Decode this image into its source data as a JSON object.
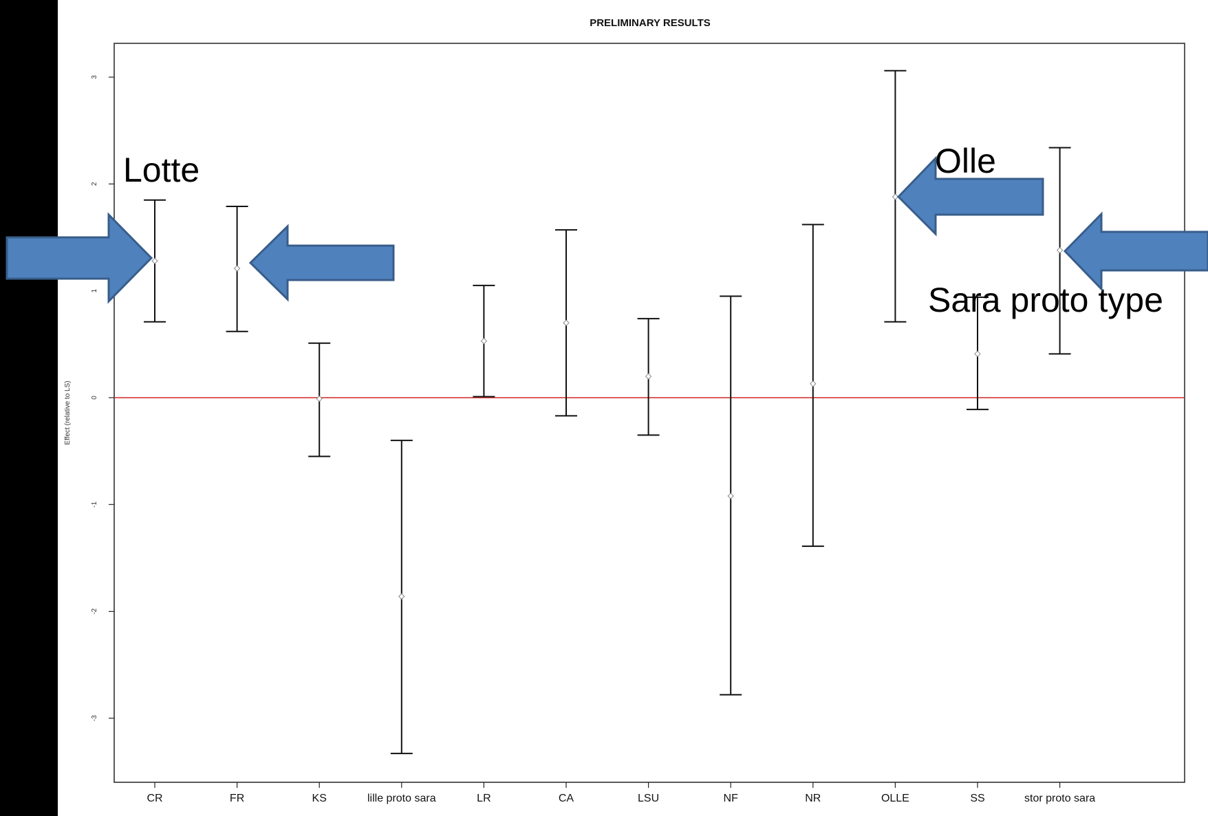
{
  "chart_data": {
    "type": "errorbar",
    "title": "PRELIMINARY RESULTS",
    "xlabel": "",
    "ylabel": "Effect (relative to LS)",
    "ylim": [
      -3.6,
      3.3
    ],
    "yticks": [
      -3,
      -2,
      -1,
      0,
      1,
      2,
      3
    ],
    "ytick_labels": [
      "-3",
      "-2",
      "-1",
      "0",
      "1",
      "2",
      "3"
    ],
    "grid": false,
    "reference_line": {
      "y": 0,
      "color": "#d62728"
    },
    "categories": [
      "CR",
      "FR",
      "KS",
      "lille proto sara",
      "LR",
      "CA",
      "LSU",
      "NF",
      "NR",
      "OLLE",
      "SS",
      "stor proto sara"
    ],
    "estimates": [
      1.28,
      1.21,
      -0.01,
      -1.86,
      0.53,
      0.7,
      0.2,
      -0.92,
      0.13,
      1.88,
      0.41,
      1.38
    ],
    "lower": [
      0.71,
      0.62,
      -0.55,
      -3.33,
      0.01,
      -0.17,
      -0.35,
      -2.78,
      -1.39,
      0.71,
      -0.11,
      0.41
    ],
    "upper": [
      1.85,
      1.79,
      0.51,
      -0.4,
      1.05,
      1.57,
      0.74,
      0.95,
      1.62,
      3.06,
      0.94,
      2.34
    ],
    "annotations": [
      "Lotte",
      "Olle",
      "Sara proto type"
    ]
  },
  "colors": {
    "background": "#000000",
    "plot_background": "#ffffff",
    "arrow_fill": "#4f81bd",
    "arrow_stroke": "#385d8a",
    "reference_line": "#d62728"
  }
}
